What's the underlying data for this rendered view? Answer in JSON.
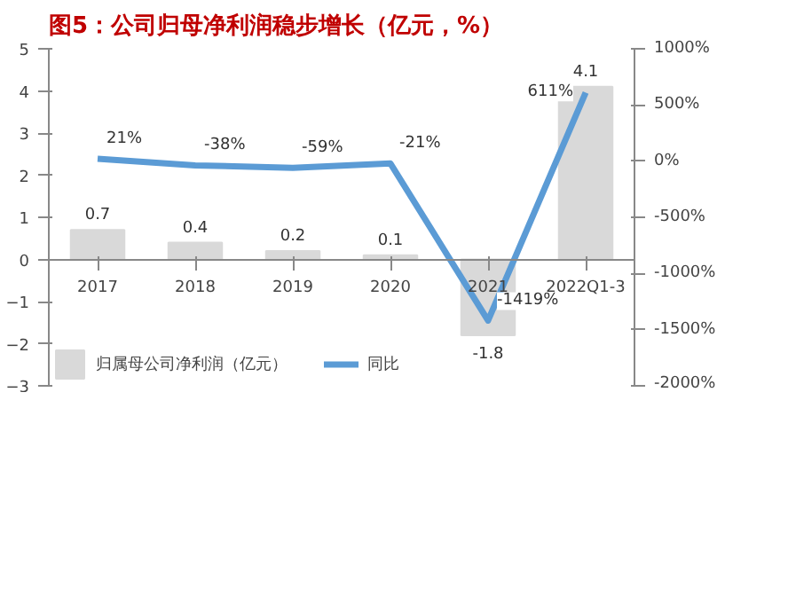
{
  "chart_data": {
    "type": "bar",
    "title": "图5：公司归母净利润稳步增长（亿元，%）",
    "categories": [
      "2017",
      "2018",
      "2019",
      "2020",
      "2021",
      "2022Q1-3"
    ],
    "series": [
      {
        "name": "归属母公司净利润（亿元）",
        "color": "#d9d9d9",
        "values": [
          0.7,
          0.4,
          0.2,
          0.1,
          -1.8,
          4.1
        ],
        "value_labels": [
          "0.7",
          "0.4",
          "0.2",
          "0.1",
          "-1.8",
          "4.1"
        ]
      },
      {
        "name": "同比",
        "type": "line",
        "axis": "y2",
        "color": "#5b9bd5",
        "values": [
          21,
          -38,
          -59,
          -21,
          -1419,
          611
        ],
        "value_labels": [
          "21%",
          "-38%",
          "-59%",
          "-21%",
          "-1419%",
          "611%"
        ]
      }
    ],
    "ylim": [
      -3,
      5
    ],
    "yticks": [
      -3,
      -2,
      -1,
      0,
      1,
      2,
      3,
      4,
      5
    ],
    "y2lim": [
      -2000,
      1000
    ],
    "y2ticks": [
      {
        "value": -2000,
        "label": "-2000%"
      },
      {
        "value": -1500,
        "label": "-1500%"
      },
      {
        "value": -1000,
        "label": "-1000%"
      },
      {
        "value": -500,
        "label": "-500%"
      },
      {
        "value": 0,
        "label": "0%"
      },
      {
        "value": 500,
        "label": "500%"
      },
      {
        "value": 1000,
        "label": "1000%"
      }
    ],
    "grid": false,
    "legend": "bottom",
    "marker": "none",
    "line_style": "solid"
  }
}
